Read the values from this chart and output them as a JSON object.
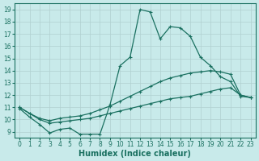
{
  "xlabel": "Humidex (Indice chaleur)",
  "ylabel": "",
  "xlim": [
    -0.5,
    23.5
  ],
  "ylim": [
    8.5,
    19.5
  ],
  "xticks": [
    0,
    1,
    2,
    3,
    4,
    5,
    6,
    7,
    8,
    9,
    10,
    11,
    12,
    13,
    14,
    15,
    16,
    17,
    18,
    19,
    20,
    21,
    22,
    23
  ],
  "yticks": [
    9,
    10,
    11,
    12,
    13,
    14,
    15,
    16,
    17,
    18,
    19
  ],
  "line_color": "#1a7060",
  "background_color": "#c8eaea",
  "line1_x": [
    0,
    1,
    2,
    3,
    4,
    5,
    6,
    7,
    8,
    9,
    10,
    11,
    12,
    13,
    14,
    15,
    16,
    17,
    18,
    19,
    20,
    21,
    22,
    23
  ],
  "line1_y": [
    10.9,
    10.2,
    9.6,
    8.9,
    9.2,
    9.3,
    8.8,
    8.8,
    8.8,
    11.2,
    14.4,
    15.1,
    19.0,
    18.8,
    16.6,
    17.6,
    17.5,
    16.8,
    15.1,
    14.4,
    13.5,
    13.1,
    11.9,
    11.8
  ],
  "line2_x": [
    0,
    1,
    2,
    3,
    4,
    5,
    6,
    7,
    8,
    9,
    10,
    11,
    12,
    13,
    14,
    15,
    16,
    17,
    18,
    19,
    20,
    21,
    22,
    23
  ],
  "line2_y": [
    11.0,
    10.5,
    10.1,
    9.9,
    10.1,
    10.2,
    10.3,
    10.5,
    10.8,
    11.1,
    11.5,
    11.9,
    12.3,
    12.7,
    13.1,
    13.4,
    13.6,
    13.8,
    13.9,
    14.0,
    13.9,
    13.7,
    12.0,
    11.8
  ],
  "line3_x": [
    0,
    1,
    2,
    3,
    4,
    5,
    6,
    7,
    8,
    9,
    10,
    11,
    12,
    13,
    14,
    15,
    16,
    17,
    18,
    19,
    20,
    21,
    22,
    23
  ],
  "line3_y": [
    11.0,
    10.5,
    10.0,
    9.7,
    9.8,
    9.9,
    10.0,
    10.1,
    10.3,
    10.5,
    10.7,
    10.9,
    11.1,
    11.3,
    11.5,
    11.7,
    11.8,
    11.9,
    12.1,
    12.3,
    12.5,
    12.6,
    12.0,
    11.8
  ],
  "grid_color": "#b0d0d0",
  "tick_fontsize": 5.5,
  "xlabel_fontsize": 7
}
